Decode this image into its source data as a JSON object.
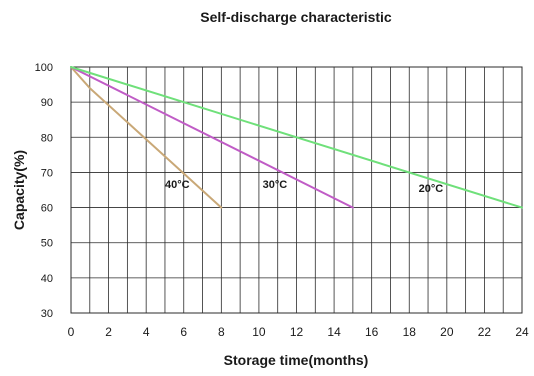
{
  "chart_data": {
    "type": "line",
    "title": "Self-discharge characteristic",
    "xlabel": "Storage time(months)",
    "ylabel": "Capacity(%)",
    "xlim": [
      0,
      24
    ],
    "ylim": [
      30,
      100
    ],
    "x_ticks": [
      0,
      2,
      4,
      6,
      8,
      10,
      12,
      14,
      16,
      18,
      20,
      22,
      24
    ],
    "y_ticks": [
      30,
      40,
      50,
      60,
      70,
      80,
      90,
      100
    ],
    "x_grid_minor_step": 1,
    "grid": true,
    "legend": "inline labels",
    "series": [
      {
        "name": "40°C",
        "color": "#c9a877",
        "x": [
          0,
          1,
          8
        ],
        "y": [
          100,
          94,
          60
        ]
      },
      {
        "name": "30°C",
        "color": "#c05cc6",
        "x": [
          0,
          15
        ],
        "y": [
          100,
          60
        ]
      },
      {
        "name": "20°C",
        "color": "#6fe07a",
        "x": [
          0,
          24
        ],
        "y": [
          100,
          60
        ]
      }
    ]
  }
}
